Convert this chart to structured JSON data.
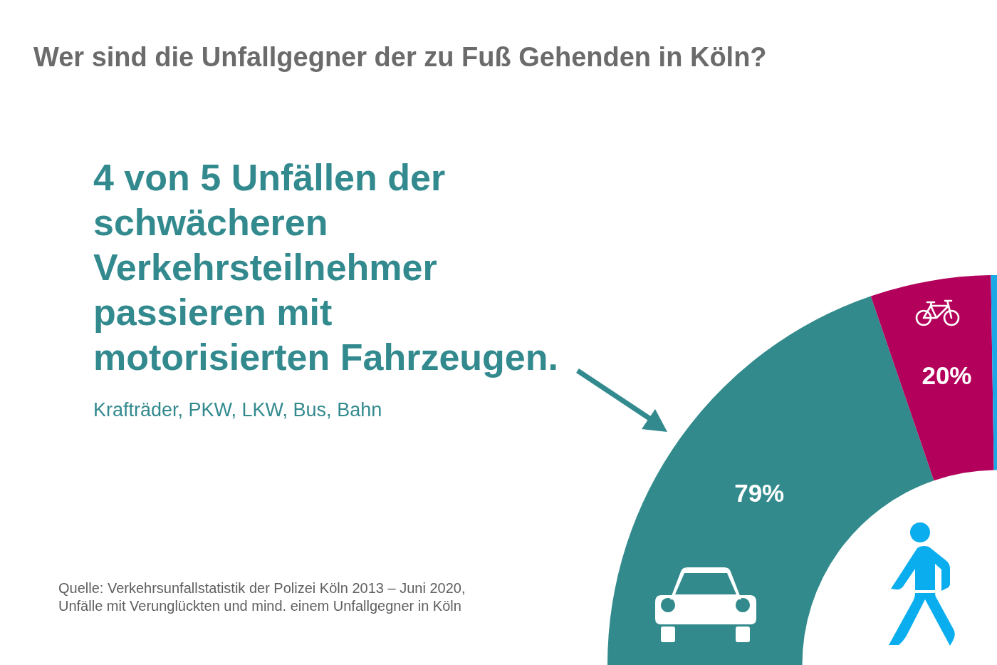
{
  "chart_data": {
    "type": "donut",
    "title": "Wer sind die Unfallgegner der zu Fuß Gehenden in Köln?",
    "subtitle": "4 von 5 Unfällen der\nschwächeren\nVerkehrsteilnehmer\npassieren mit\nmotorisierten Fahrzeugen.",
    "annotations": [
      "Krafträder, PKW, LKW, Bus, Bahn",
      "Quelle: Verkehrsunfallstatistik der Polizei Köln 2013 – Juni 2020,\nUnfälle mit Verunglückten und mind. einem Unfallgegner in Köln"
    ],
    "categories": [
      null,
      null,
      null
    ],
    "values": [
      79,
      20,
      1
    ],
    "colors": [
      "#328a8c",
      "#b3005a",
      "#1aa9e6"
    ],
    "value_labels": [
      "79%",
      "20%",
      null
    ]
  }
}
